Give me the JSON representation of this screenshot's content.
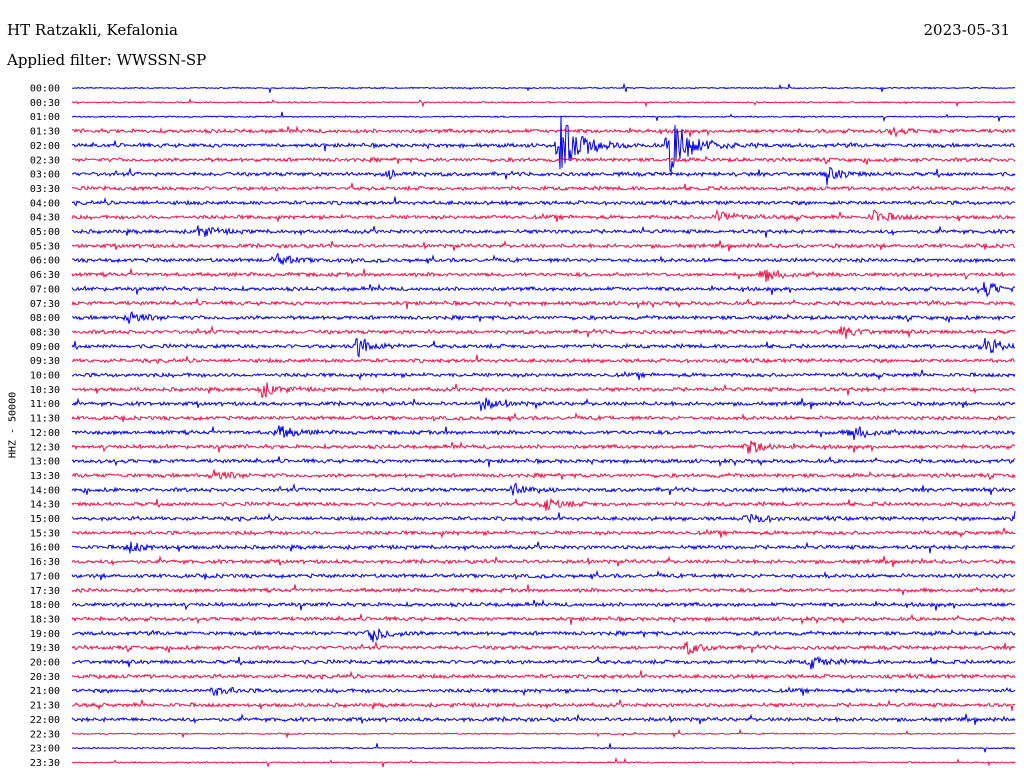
{
  "header": {
    "station": "HT Ratzakli, Kefalonia",
    "filter": "Applied filter: WWSSN-SP",
    "date": "2023-05-31"
  },
  "chart_data": {
    "type": "line",
    "title": "HT Ratzakli, Kefalonia",
    "subtitle": "Applied filter: WWSSN-SP",
    "date": "2023-05-31",
    "ylabel": "HHZ - 50000",
    "row_labels": [
      "00:00",
      "00:30",
      "01:00",
      "01:30",
      "02:00",
      "02:30",
      "03:00",
      "03:30",
      "04:00",
      "04:30",
      "05:00",
      "05:30",
      "06:00",
      "06:30",
      "07:00",
      "07:30",
      "08:00",
      "08:30",
      "09:00",
      "09:30",
      "10:00",
      "10:30",
      "11:00",
      "11:30",
      "12:00",
      "12:30",
      "13:00",
      "13:30",
      "14:00",
      "14:30",
      "15:00",
      "15:30",
      "16:00",
      "16:30",
      "17:00",
      "17:30",
      "18:00",
      "18:30",
      "19:00",
      "19:30",
      "20:00",
      "20:30",
      "21:00",
      "21:30",
      "22:00",
      "22:30",
      "23:00",
      "23:30"
    ],
    "series_colors": [
      "#0000ee",
      "#ee1144"
    ],
    "events": [
      {
        "row": "02:00",
        "minute": 15.5,
        "amplitude": 4.2
      },
      {
        "row": "02:00",
        "minute": 19.0,
        "amplitude": 4.2
      },
      {
        "row": "01:30",
        "minute": 26.0,
        "amplitude": 0.5
      },
      {
        "row": "03:00",
        "minute": 10.0,
        "amplitude": 0.6
      },
      {
        "row": "03:00",
        "minute": 24.0,
        "amplitude": 0.9
      },
      {
        "row": "05:00",
        "minute": 4.0,
        "amplitude": 0.9
      },
      {
        "row": "04:30",
        "minute": 20.5,
        "amplitude": 1.0
      },
      {
        "row": "04:30",
        "minute": 25.5,
        "amplitude": 1.0
      },
      {
        "row": "06:00",
        "minute": 6.5,
        "amplitude": 0.8
      },
      {
        "row": "06:30",
        "minute": 22.0,
        "amplitude": 1.0
      },
      {
        "row": "07:00",
        "minute": 29.0,
        "amplitude": 1.1
      },
      {
        "row": "08:00",
        "minute": 1.8,
        "amplitude": 1.0
      },
      {
        "row": "08:30",
        "minute": 24.5,
        "amplitude": 0.9
      },
      {
        "row": "09:00",
        "minute": 9.0,
        "amplitude": 1.6
      },
      {
        "row": "09:00",
        "minute": 29.0,
        "amplitude": 1.3
      },
      {
        "row": "10:30",
        "minute": 6.0,
        "amplitude": 1.2
      },
      {
        "row": "11:00",
        "minute": 13.0,
        "amplitude": 0.9
      },
      {
        "row": "12:00",
        "minute": 6.5,
        "amplitude": 1.1
      },
      {
        "row": "12:00",
        "minute": 24.8,
        "amplitude": 1.2
      },
      {
        "row": "12:30",
        "minute": 21.5,
        "amplitude": 1.0
      },
      {
        "row": "13:30",
        "minute": 4.5,
        "amplitude": 0.9
      },
      {
        "row": "14:00",
        "minute": 14.0,
        "amplitude": 1.1
      },
      {
        "row": "14:30",
        "minute": 15.0,
        "amplitude": 1.0
      },
      {
        "row": "15:00",
        "minute": 21.5,
        "amplitude": 0.9
      },
      {
        "row": "15:00",
        "minute": 30.0,
        "amplitude": 0.9
      },
      {
        "row": "16:00",
        "minute": 1.8,
        "amplitude": 0.8
      },
      {
        "row": "19:00",
        "minute": 9.5,
        "amplitude": 1.3
      },
      {
        "row": "19:30",
        "minute": 19.5,
        "amplitude": 0.9
      },
      {
        "row": "20:00",
        "minute": 23.5,
        "amplitude": 0.9
      },
      {
        "row": "21:00",
        "minute": 4.5,
        "amplitude": 0.7
      }
    ]
  }
}
